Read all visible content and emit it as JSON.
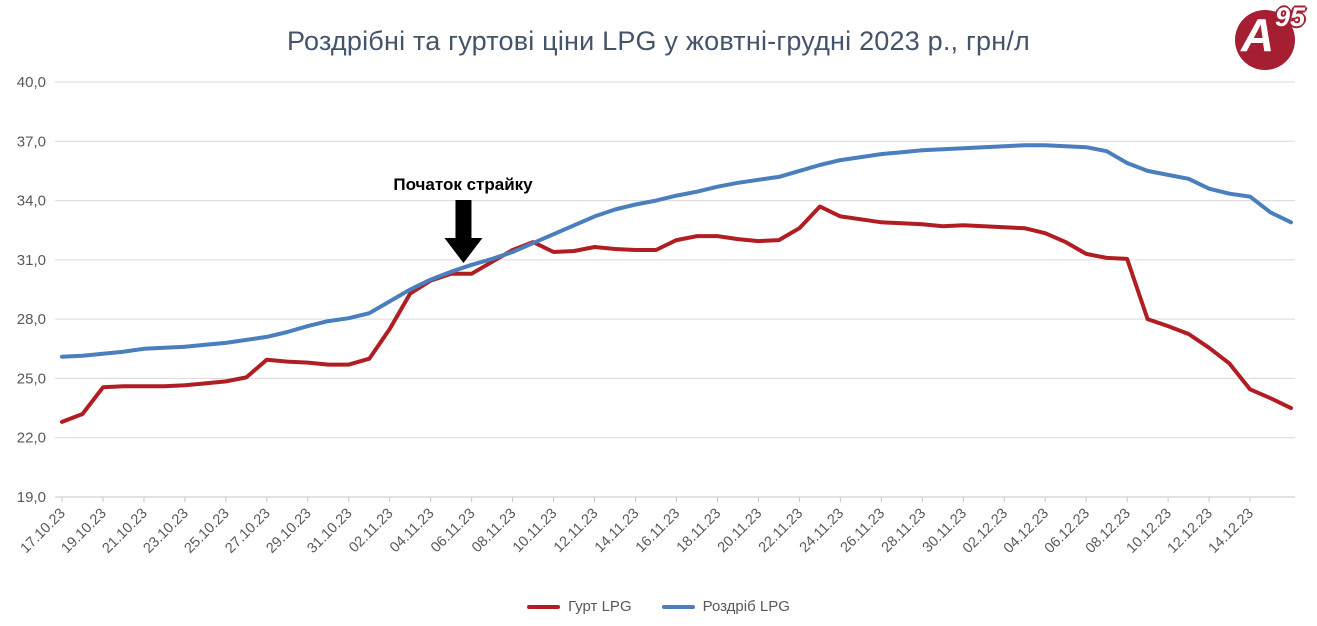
{
  "title": "Роздрібні та гуртові ціни LPG у жовтні-грудні 2023 р., грн/л",
  "logo": {
    "letter": "A",
    "superscript": "95",
    "color": "#a51e32"
  },
  "annotation": {
    "text": "Початок страйку",
    "date": "06.11.23"
  },
  "legend": {
    "items": [
      {
        "label": "Гурт LPG",
        "color": "#b01e23"
      },
      {
        "label": "Роздріб LPG",
        "color": "#4a7ebc"
      }
    ]
  },
  "colors": {
    "gridline": "#d9d9d9",
    "axis_line": "#c6c6c6",
    "tick_text": "#595959",
    "title_text": "#44546a",
    "arrow": "#000000"
  },
  "chart_data": {
    "type": "line",
    "title": "Роздрібні та гуртові ціни LPG у жовтні-грудні 2023 р., грн/л",
    "xlabel": "",
    "ylabel": "грн/л",
    "ylim": [
      19,
      40
    ],
    "grid": true,
    "legend_position": "bottom",
    "y_tick_values": [
      40,
      37,
      34,
      31,
      28,
      25,
      22,
      19
    ],
    "y_tick_labels": [
      "40,0",
      "37,0",
      "34,0",
      "31,0",
      "28,0",
      "25,0",
      "22,0",
      "19,0"
    ],
    "x_tick_every": 2,
    "x": [
      "17.10.23",
      "18.10.23",
      "19.10.23",
      "20.10.23",
      "21.10.23",
      "22.10.23",
      "23.10.23",
      "24.10.23",
      "25.10.23",
      "26.10.23",
      "27.10.23",
      "28.10.23",
      "29.10.23",
      "30.10.23",
      "31.10.23",
      "01.11.23",
      "02.11.23",
      "03.11.23",
      "04.11.23",
      "05.11.23",
      "06.11.23",
      "07.11.23",
      "08.11.23",
      "09.11.23",
      "10.11.23",
      "11.11.23",
      "12.11.23",
      "13.11.23",
      "14.11.23",
      "15.11.23",
      "16.11.23",
      "17.11.23",
      "18.11.23",
      "19.11.23",
      "20.11.23",
      "21.11.23",
      "22.11.23",
      "23.11.23",
      "24.11.23",
      "25.11.23",
      "26.11.23",
      "27.11.23",
      "28.11.23",
      "29.11.23",
      "30.11.23",
      "01.12.23",
      "02.12.23",
      "03.12.23",
      "04.12.23",
      "05.12.23",
      "06.12.23",
      "07.12.23",
      "08.12.23",
      "09.12.23",
      "10.12.23",
      "11.12.23",
      "12.12.23",
      "13.12.23",
      "14.12.23",
      "15.12.23",
      "16.12.23"
    ],
    "series": [
      {
        "name": "Гурт LPG",
        "color": "#b01e23",
        "values": [
          22.8,
          23.2,
          24.55,
          24.6,
          24.6,
          24.6,
          24.65,
          24.75,
          24.85,
          25.05,
          25.95,
          25.85,
          25.8,
          25.7,
          25.7,
          26.0,
          27.5,
          29.3,
          29.95,
          30.3,
          30.3,
          30.9,
          31.5,
          31.9,
          31.4,
          31.45,
          31.65,
          31.55,
          31.5,
          31.5,
          32.0,
          32.2,
          32.2,
          32.05,
          31.95,
          32.0,
          32.6,
          33.7,
          33.2,
          33.05,
          32.9,
          32.85,
          32.8,
          32.7,
          32.75,
          32.7,
          32.65,
          32.6,
          32.35,
          31.9,
          31.3,
          31.1,
          31.05,
          28.0,
          27.65,
          27.25,
          26.55,
          25.75,
          24.45,
          24.0,
          23.5
        ]
      },
      {
        "name": "Роздріб LPG",
        "color": "#4a7ebc",
        "values": [
          26.1,
          26.15,
          26.25,
          26.35,
          26.5,
          26.55,
          26.6,
          26.7,
          26.8,
          26.95,
          27.1,
          27.35,
          27.65,
          27.9,
          28.05,
          28.3,
          28.9,
          29.5,
          30.0,
          30.4,
          30.75,
          31.05,
          31.4,
          31.85,
          32.3,
          32.75,
          33.2,
          33.55,
          33.8,
          34.0,
          34.25,
          34.45,
          34.7,
          34.9,
          35.05,
          35.2,
          35.5,
          35.8,
          36.05,
          36.2,
          36.35,
          36.45,
          36.55,
          36.6,
          36.65,
          36.7,
          36.75,
          36.8,
          36.8,
          36.75,
          36.7,
          36.5,
          35.9,
          35.5,
          35.3,
          35.1,
          34.6,
          34.35,
          34.2,
          33.4,
          32.9
        ]
      }
    ],
    "annotation": {
      "text": "Початок страйку",
      "date": "06.11.23"
    }
  }
}
